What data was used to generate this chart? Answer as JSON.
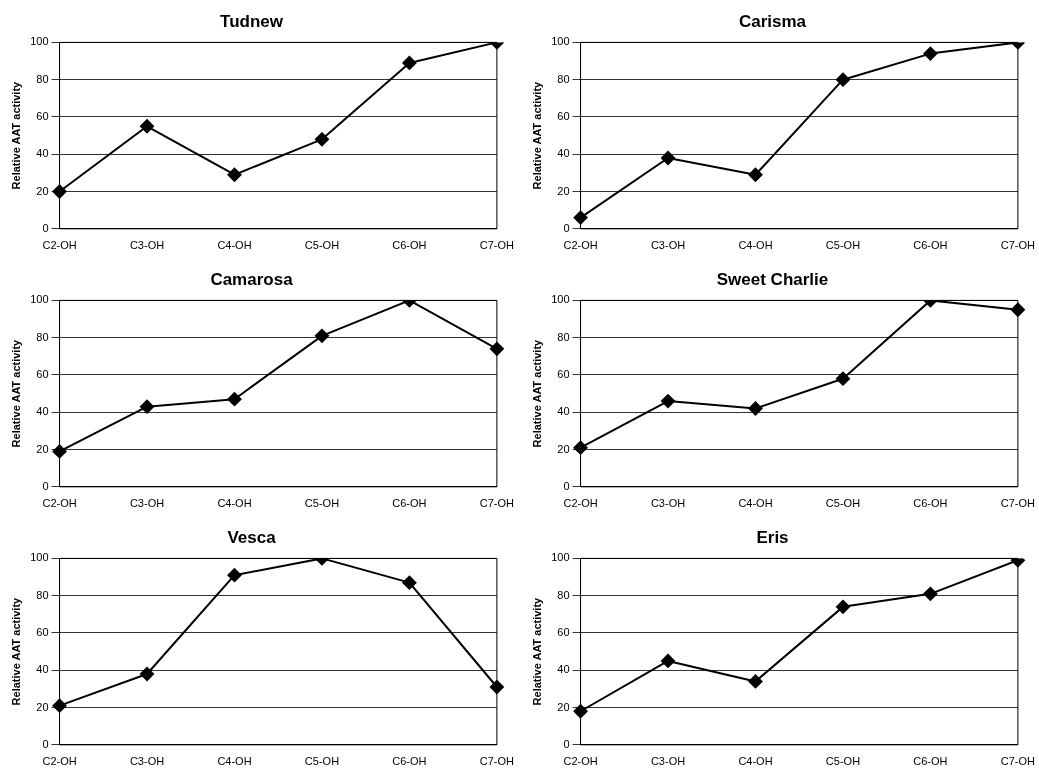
{
  "chart_data": [
    {
      "type": "line",
      "title": "Tudnew",
      "ylabel": "Relative AAT activity",
      "categories": [
        "C2-OH",
        "C3-OH",
        "C4-OH",
        "C5-OH",
        "C6-OH",
        "C7-OH"
      ],
      "series": [
        {
          "color": "#000000",
          "values": [
            20,
            55,
            29,
            48,
            89,
            100
          ]
        }
      ],
      "ylim": [
        0,
        100
      ],
      "yticks": [
        0,
        20,
        40,
        60,
        80,
        100
      ],
      "grid": "y",
      "legend": false,
      "marker": "diamond",
      "line_style": "solid"
    },
    {
      "type": "line",
      "title": "Carisma",
      "ylabel": "Relative AAT activity",
      "categories": [
        "C2-OH",
        "C3-OH",
        "C4-OH",
        "C5-OH",
        "C6-OH",
        "C7-OH"
      ],
      "series": [
        {
          "color": "#000000",
          "values": [
            6,
            38,
            29,
            80,
            94,
            100
          ]
        }
      ],
      "ylim": [
        0,
        100
      ],
      "yticks": [
        0,
        20,
        40,
        60,
        80,
        100
      ],
      "grid": "y",
      "legend": false,
      "marker": "diamond",
      "line_style": "solid"
    },
    {
      "type": "line",
      "title": "Camarosa",
      "ylabel": "Relative AAT activity",
      "categories": [
        "C2-OH",
        "C3-OH",
        "C4-OH",
        "C5-OH",
        "C6-OH",
        "C7-OH"
      ],
      "series": [
        {
          "color": "#000000",
          "values": [
            19,
            43,
            47,
            81,
            100,
            74
          ]
        }
      ],
      "ylim": [
        0,
        100
      ],
      "yticks": [
        0,
        20,
        40,
        60,
        80,
        100
      ],
      "grid": "y",
      "legend": false,
      "marker": "diamond",
      "line_style": "solid"
    },
    {
      "type": "line",
      "title": "Sweet Charlie",
      "ylabel": "Relative AAT activity",
      "categories": [
        "C2-OH",
        "C3-OH",
        "C4-OH",
        "C5-OH",
        "C6-OH",
        "C7-OH"
      ],
      "series": [
        {
          "color": "#000000",
          "values": [
            21,
            46,
            42,
            58,
            100,
            95
          ]
        }
      ],
      "ylim": [
        0,
        100
      ],
      "yticks": [
        0,
        20,
        40,
        60,
        80,
        100
      ],
      "grid": "y",
      "legend": false,
      "marker": "diamond",
      "line_style": "solid"
    },
    {
      "type": "line",
      "title": "Vesca",
      "ylabel": "Relative AAT activity",
      "categories": [
        "C2-OH",
        "C3-OH",
        "C4-OH",
        "C5-OH",
        "C6-OH",
        "C7-OH"
      ],
      "series": [
        {
          "color": "#000000",
          "values": [
            21,
            38,
            91,
            100,
            87,
            31
          ]
        }
      ],
      "ylim": [
        0,
        100
      ],
      "yticks": [
        0,
        20,
        40,
        60,
        80,
        100
      ],
      "grid": "y",
      "legend": false,
      "marker": "diamond",
      "line_style": "solid"
    },
    {
      "type": "line",
      "title": "Eris",
      "ylabel": "Relative AAT activity",
      "categories": [
        "C2-OH",
        "C3-OH",
        "C4-OH",
        "C5-OH",
        "C6-OH",
        "C7-OH"
      ],
      "series": [
        {
          "color": "#000000",
          "values": [
            18,
            45,
            34,
            74,
            81,
            99
          ]
        }
      ],
      "ylim": [
        0,
        100
      ],
      "yticks": [
        0,
        20,
        40,
        60,
        80,
        100
      ],
      "grid": "y",
      "legend": false,
      "marker": "diamond",
      "line_style": "solid"
    }
  ]
}
